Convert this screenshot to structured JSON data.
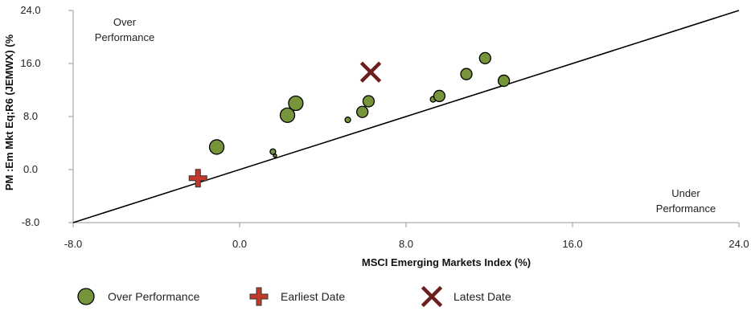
{
  "chart_data": {
    "type": "scatter",
    "xlabel": "MSCI Emerging Markets Index (%)",
    "ylabel": "PM :Em Mkt Eq;R6 (JEMWX) (%",
    "xlim": [
      -8,
      24
    ],
    "ylim": [
      -8,
      24
    ],
    "x_ticks": [
      "-8.0",
      "0.0",
      "8.0",
      "16.0",
      "24.0"
    ],
    "y_ticks": [
      "-8.0",
      "0.0",
      "8.0",
      "16.0",
      "24.0"
    ],
    "grid": "none",
    "reference_line": {
      "from": [
        -8,
        -8
      ],
      "to": [
        24,
        24
      ]
    },
    "annotations": {
      "over_line1": "Over",
      "over_line2": "Performance",
      "under_line1": "Under",
      "under_line2": "Performance"
    },
    "series": [
      {
        "name": "Over Performance",
        "marker": "circle",
        "color": "#76943a",
        "points": [
          {
            "x": -1.1,
            "y": 3.4,
            "size": "large"
          },
          {
            "x": 1.6,
            "y": 2.7,
            "size": "small"
          },
          {
            "x": 1.7,
            "y": 2.1,
            "size": "tiny"
          },
          {
            "x": 2.3,
            "y": 8.2,
            "size": "large"
          },
          {
            "x": 2.7,
            "y": 10.0,
            "size": "large"
          },
          {
            "x": 5.2,
            "y": 7.5,
            "size": "small"
          },
          {
            "x": 5.9,
            "y": 8.7,
            "size": "medium"
          },
          {
            "x": 6.2,
            "y": 10.3,
            "size": "medium"
          },
          {
            "x": 9.3,
            "y": 10.6,
            "size": "small"
          },
          {
            "x": 9.6,
            "y": 11.1,
            "size": "medium"
          },
          {
            "x": 10.9,
            "y": 14.4,
            "size": "medium"
          },
          {
            "x": 11.8,
            "y": 16.8,
            "size": "medium"
          },
          {
            "x": 12.7,
            "y": 13.4,
            "size": "medium"
          }
        ]
      },
      {
        "name": "Earliest Date",
        "marker": "plus",
        "color": "#c0392b",
        "points": [
          {
            "x": -2.0,
            "y": -1.3
          }
        ]
      },
      {
        "name": "Latest Date",
        "marker": "x",
        "color": "#6b1e1e",
        "points": [
          {
            "x": 6.3,
            "y": 14.7
          }
        ]
      }
    ],
    "legend": {
      "placement": "bottom",
      "entries": [
        "Over Performance",
        "Earliest Date",
        "Latest Date"
      ]
    }
  }
}
